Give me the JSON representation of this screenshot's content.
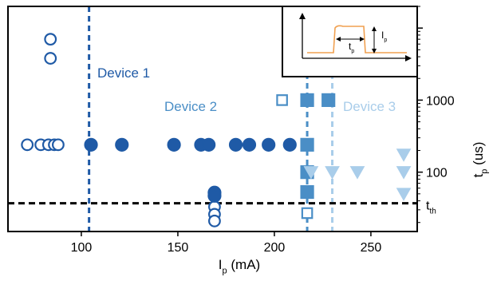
{
  "colors": {
    "device1": "#1f5aa6",
    "device2": "#4a8ec6",
    "device3": "#a9cdea",
    "threshold": "#000000",
    "inset_trace": "#f0a050",
    "axis": "#000000"
  },
  "chart_data": {
    "type": "scatter",
    "xlabel": {
      "main": "I",
      "sub": "p",
      "rest": " (mA)"
    },
    "ylabel": {
      "main": "t",
      "sub": "p",
      "rest": " (us)"
    },
    "x_ticks": [
      100,
      150,
      200,
      250
    ],
    "y_ticks": [
      {
        "value": 100,
        "label": "100"
      },
      {
        "value": 1000,
        "label": "1000"
      }
    ],
    "xlim": [
      62,
      274
    ],
    "ylim": [
      15,
      20000
    ],
    "y_scale": "log",
    "y_axis_side": "right",
    "grid": false,
    "legend": "none",
    "threshold": {
      "value": 37,
      "label": {
        "main": "t",
        "sub": "th"
      }
    },
    "devices": [
      {
        "label": "Device 1",
        "color_key": "device1",
        "critical_current": 104,
        "series": [
          {
            "marker": "circle",
            "filled": false,
            "points": [
              [
                72,
                240
              ],
              [
                79,
                240
              ],
              [
                83,
                240
              ],
              [
                86,
                240
              ],
              [
                88,
                240
              ],
              [
                84,
                7000
              ],
              [
                84,
                3800
              ],
              [
                169,
                33
              ],
              [
                169,
                26
              ],
              [
                169,
                21
              ]
            ]
          },
          {
            "marker": "circle",
            "filled": true,
            "points": [
              [
                105,
                240
              ],
              [
                121,
                240
              ],
              [
                148,
                240
              ],
              [
                162,
                240
              ],
              [
                166,
                240
              ],
              [
                180,
                240
              ],
              [
                187,
                240
              ],
              [
                197,
                240
              ],
              [
                208,
                240
              ],
              [
                169,
                52
              ],
              [
                169,
                47
              ]
            ]
          }
        ]
      },
      {
        "label": "Device 2",
        "color_key": "device2",
        "critical_current": 217,
        "series": [
          {
            "marker": "square",
            "filled": false,
            "points": [
              [
                204,
                1000
              ],
              [
                217,
                27
              ]
            ]
          },
          {
            "marker": "square",
            "filled": true,
            "points": [
              [
                217,
                1000
              ],
              [
                228,
                1000
              ],
              [
                217,
                240
              ],
              [
                217,
                100
              ],
              [
                217,
                53
              ]
            ]
          }
        ]
      },
      {
        "label": "Device 3",
        "color_key": "device3",
        "critical_current": 230,
        "series": [
          {
            "marker": "triangle-down",
            "filled": true,
            "points": [
              [
                267,
                175
              ],
              [
                219,
                100
              ],
              [
                230,
                100
              ],
              [
                243,
                100
              ],
              [
                267,
                100
              ],
              [
                267,
                50
              ]
            ]
          }
        ]
      }
    ],
    "inset": {
      "labels": {
        "width": {
          "main": "t",
          "sub": "p"
        },
        "height": {
          "main": "I",
          "sub": "p"
        }
      }
    }
  }
}
